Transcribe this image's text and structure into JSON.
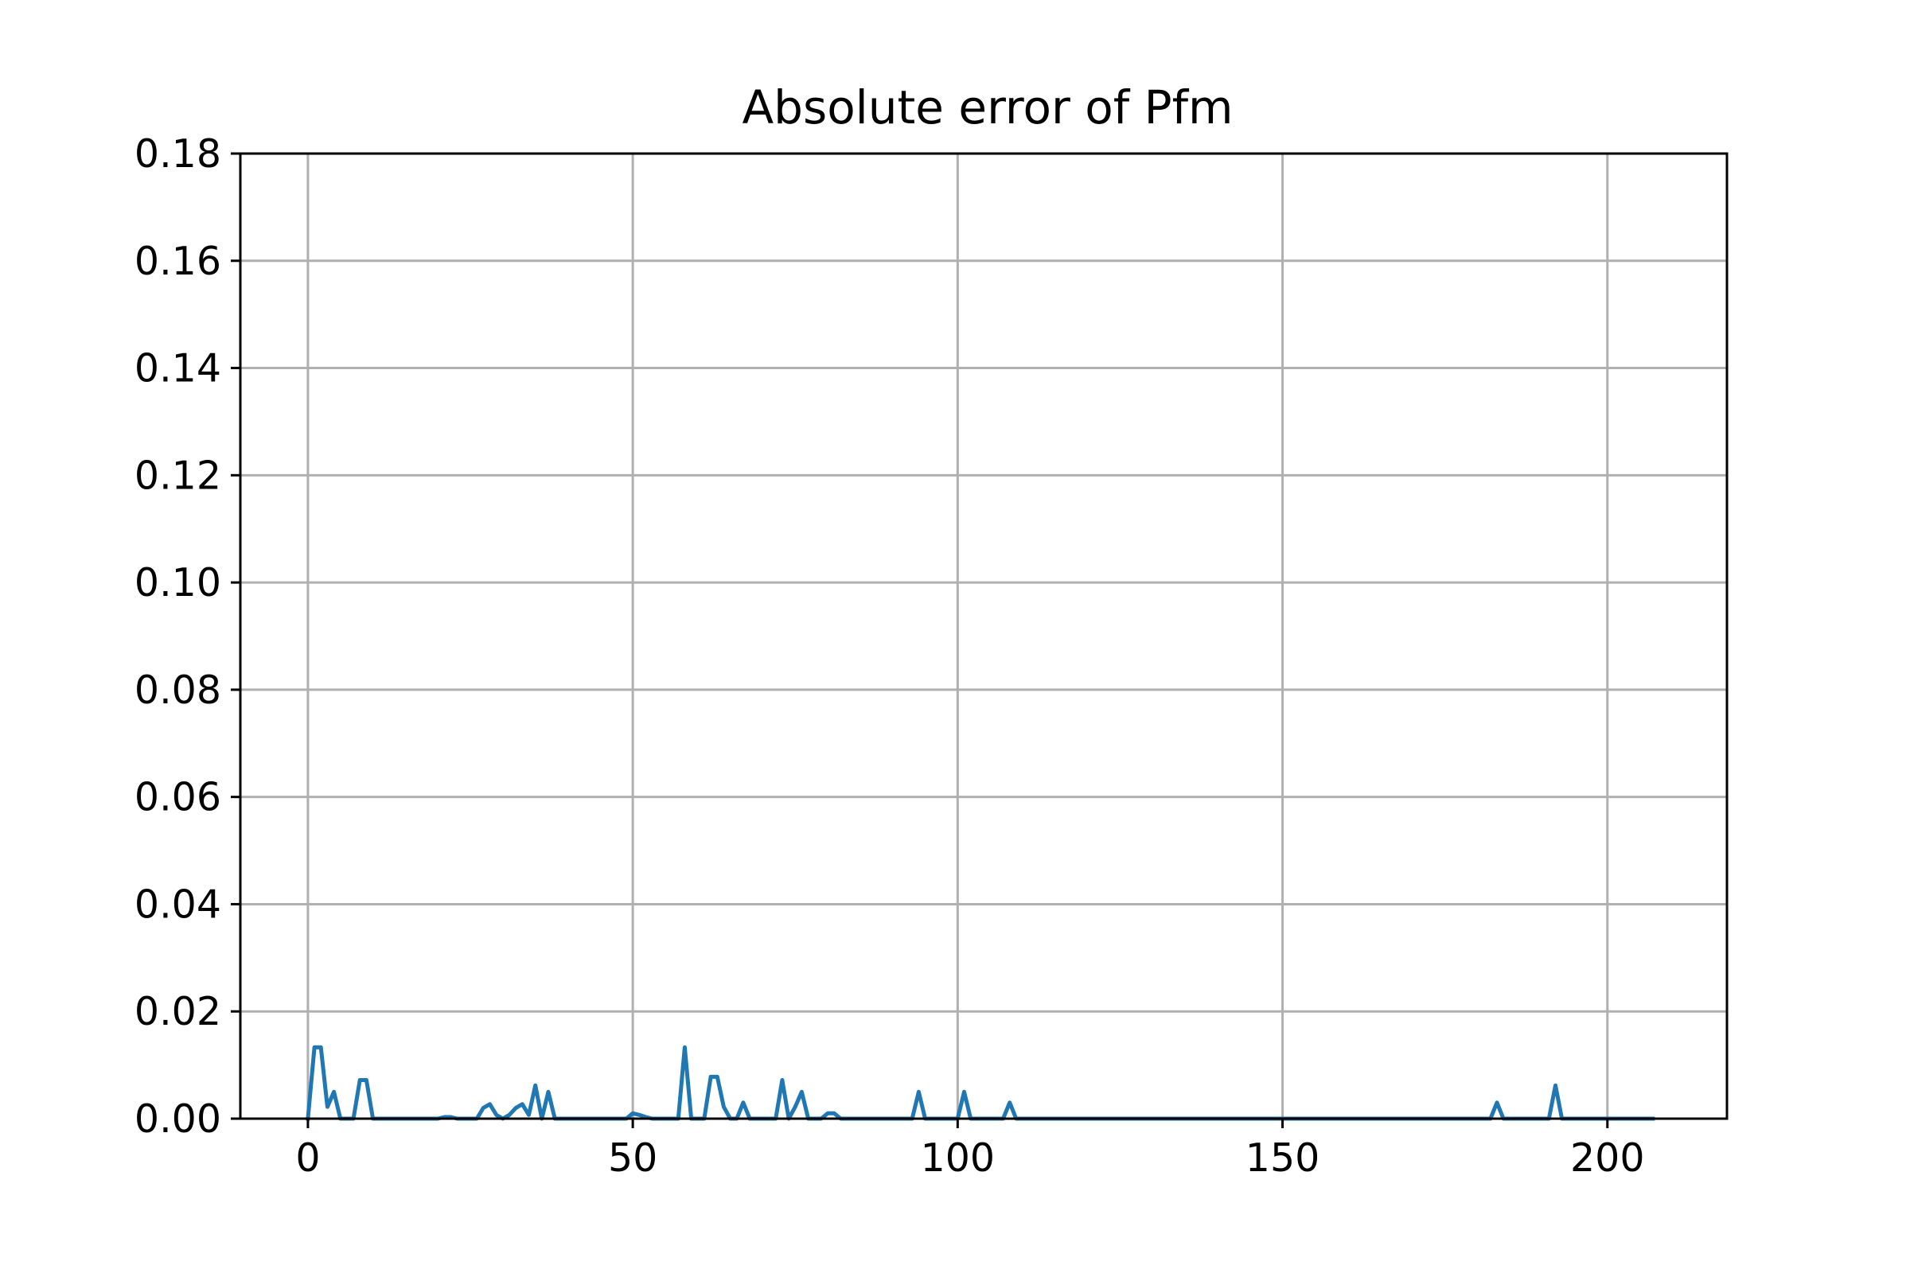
{
  "chart_data": {
    "type": "line",
    "title": "Absolute error of Pfm",
    "xlabel": "",
    "ylabel": "",
    "xlim": [
      -10.4,
      218.4
    ],
    "ylim": [
      0,
      0.18
    ],
    "xticks": [
      0,
      50,
      100,
      150,
      200
    ],
    "xtick_labels": [
      "0",
      "50",
      "100",
      "150",
      "200"
    ],
    "yticks": [
      0,
      0.02,
      0.04,
      0.06,
      0.08,
      0.1,
      0.12,
      0.14,
      0.16,
      0.18
    ],
    "ytick_labels": [
      "0.00",
      "0.02",
      "0.04",
      "0.06",
      "0.08",
      "0.10",
      "0.12",
      "0.14",
      "0.16",
      "0.18"
    ],
    "grid": true,
    "legend": "none",
    "colors": {
      "line": "#1f77b4",
      "grid": "#b0b0b0",
      "axes": "#000000"
    },
    "series": [
      {
        "x": [
          0,
          1,
          2,
          3,
          4,
          5,
          6,
          7,
          8,
          9,
          10,
          11,
          20,
          21,
          22,
          23,
          24,
          25,
          26,
          27,
          28,
          29,
          30,
          31,
          32,
          33,
          34,
          35,
          36,
          37,
          38,
          39,
          49,
          50,
          51,
          52,
          53,
          54,
          55,
          56,
          57,
          58,
          59,
          60,
          61,
          62,
          63,
          64,
          65,
          66,
          67,
          68,
          69,
          72,
          73,
          74,
          75,
          76,
          77,
          78,
          79,
          80,
          81,
          82,
          83,
          93,
          94,
          95,
          100,
          101,
          102,
          107,
          108,
          109,
          182,
          183,
          184,
          191,
          192,
          193,
          207
        ],
        "y": [
          0,
          0.0133,
          0.0133,
          0.0022,
          0.005,
          0,
          0,
          0,
          0.0072,
          0.0072,
          0,
          0,
          0,
          0.0003,
          0.0003,
          0,
          0,
          0,
          0,
          0.002,
          0.0027,
          0.0007,
          0,
          0.0007,
          0.002,
          0.0027,
          0.0007,
          0.0062,
          0,
          0.005,
          0,
          0,
          0,
          0.001,
          0.0007,
          0.0003,
          0,
          0,
          0,
          0,
          0,
          0.0133,
          0,
          0,
          0,
          0.0078,
          0.0078,
          0.0022,
          0,
          0,
          0.003,
          0,
          0,
          0,
          0.0072,
          0,
          0.0022,
          0.005,
          0,
          0,
          0,
          0.001,
          0.001,
          0,
          0,
          0,
          0.005,
          0,
          0,
          0.005,
          0,
          0,
          0.003,
          0,
          0,
          0.003,
          0,
          0,
          0.0062,
          0,
          0
        ]
      }
    ]
  }
}
